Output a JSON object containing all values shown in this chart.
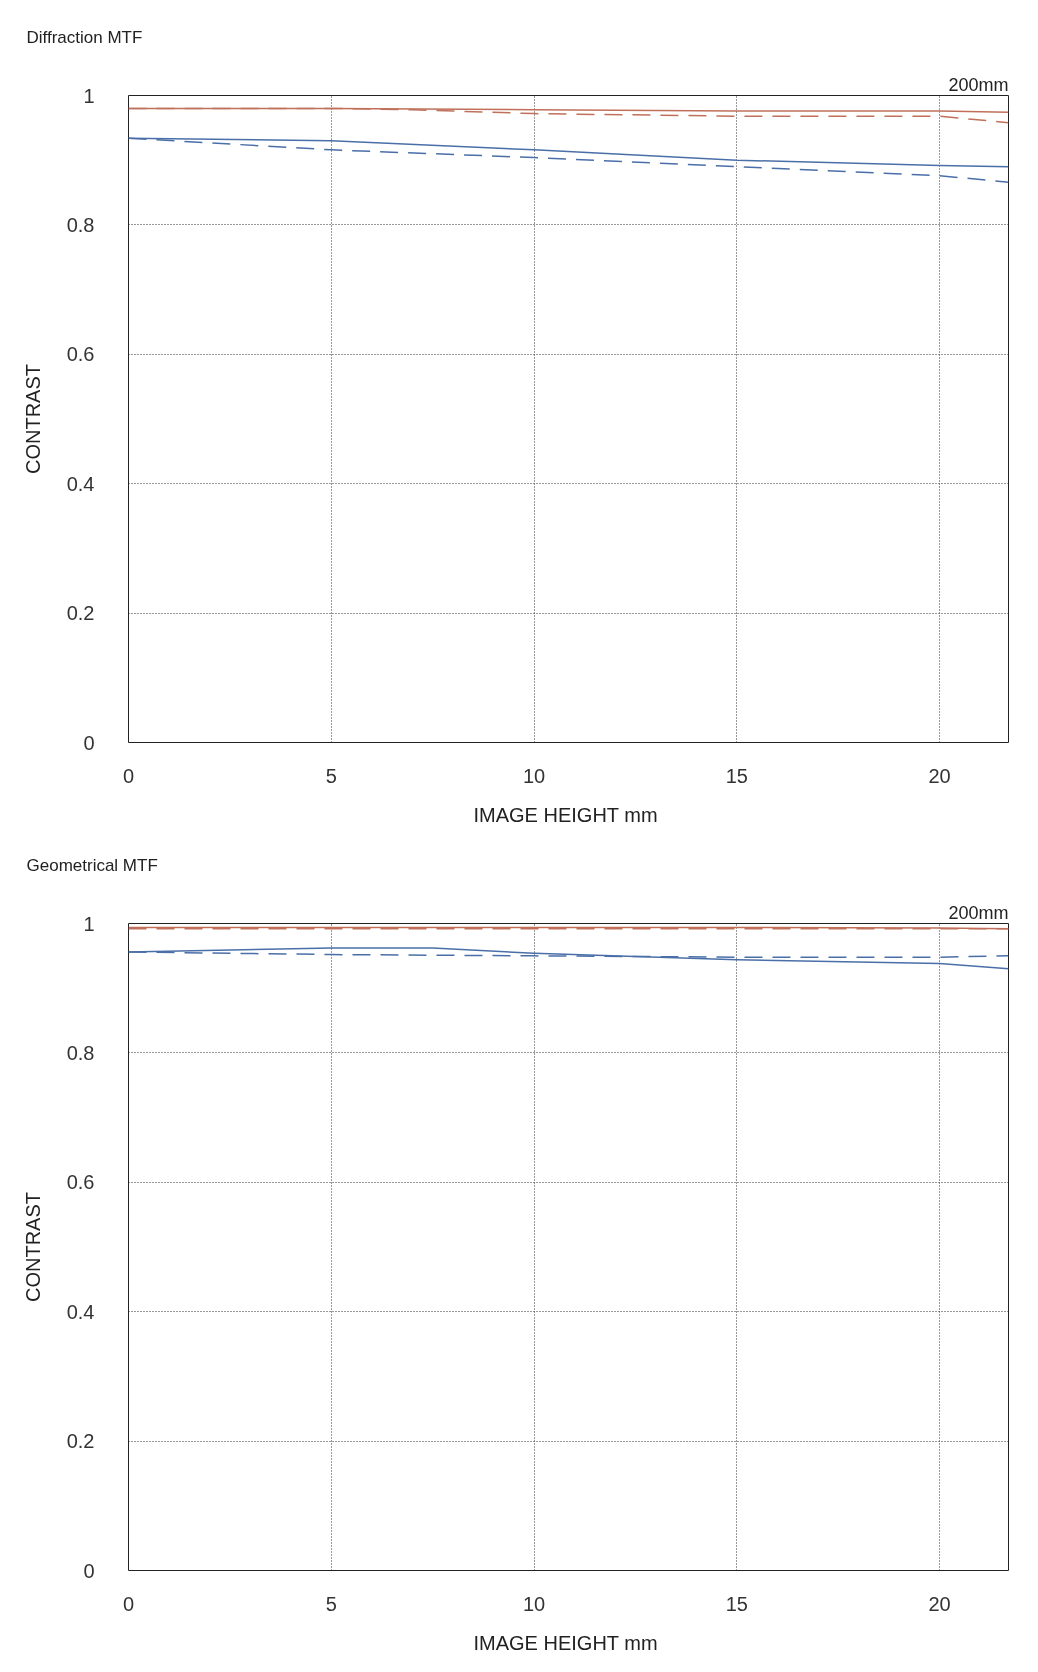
{
  "chart_data": [
    {
      "type": "line",
      "title": "Diffraction MTF",
      "annotations": [
        "200mm"
      ],
      "xlabel": "IMAGE HEIGHT  mm",
      "ylabel": "CONTRAST",
      "xlim": [
        0,
        21.7
      ],
      "ylim": [
        0,
        1
      ],
      "xticks": [
        0,
        5,
        10,
        15,
        20
      ],
      "yticks": [
        0,
        0.2,
        0.4,
        0.6,
        0.8,
        1
      ],
      "grid": true,
      "marker": "none",
      "series": [
        {
          "color": "#c0705a",
          "line_style": "solid",
          "x": [
            0,
            5,
            10,
            15,
            20,
            21.7
          ],
          "values": [
            0.98,
            0.98,
            0.978,
            0.976,
            0.976,
            0.974
          ]
        },
        {
          "color": "#c0705a",
          "line_style": "dashed",
          "x": [
            0,
            5,
            7,
            10,
            15,
            20,
            21.7
          ],
          "values": [
            0.98,
            0.98,
            0.978,
            0.972,
            0.968,
            0.968,
            0.958
          ]
        },
        {
          "color": "#4a6fa8",
          "line_style": "solid",
          "x": [
            0,
            5,
            10,
            15,
            20,
            21.7
          ],
          "values": [
            0.934,
            0.93,
            0.916,
            0.9,
            0.892,
            0.89
          ]
        },
        {
          "color": "#4a6fa8",
          "line_style": "dashed",
          "x": [
            0,
            5,
            10,
            15,
            20,
            21.7
          ],
          "values": [
            0.934,
            0.916,
            0.904,
            0.89,
            0.876,
            0.866
          ]
        }
      ]
    },
    {
      "type": "line",
      "title": "Geometrical MTF",
      "annotations": [
        "200mm"
      ],
      "xlabel": "IMAGE HEIGHT  mm",
      "ylabel": "CONTRAST",
      "xlim": [
        0,
        21.7
      ],
      "ylim": [
        0,
        1
      ],
      "xticks": [
        0,
        5,
        10,
        15,
        20
      ],
      "yticks": [
        0,
        0.2,
        0.4,
        0.6,
        0.8,
        1
      ],
      "grid": true,
      "marker": "none",
      "series": [
        {
          "color": "#c0705a",
          "line_style": "solid",
          "x": [
            0,
            5,
            10,
            15,
            20,
            21.7
          ],
          "values": [
            0.994,
            0.994,
            0.994,
            0.994,
            0.993,
            0.992
          ]
        },
        {
          "color": "#c0705a",
          "line_style": "dashed",
          "x": [
            0,
            5,
            10,
            15,
            20,
            21.7
          ],
          "values": [
            0.992,
            0.992,
            0.992,
            0.992,
            0.992,
            0.992
          ]
        },
        {
          "color": "#4a6fa8",
          "line_style": "solid",
          "x": [
            0,
            5,
            7.5,
            10,
            15,
            20,
            21.7
          ],
          "values": [
            0.956,
            0.962,
            0.962,
            0.954,
            0.944,
            0.938,
            0.93
          ]
        },
        {
          "color": "#4a6fa8",
          "line_style": "dashed",
          "x": [
            0,
            5,
            10,
            15,
            20,
            21.7
          ],
          "values": [
            0.956,
            0.952,
            0.95,
            0.948,
            0.948,
            0.95
          ]
        }
      ]
    }
  ]
}
